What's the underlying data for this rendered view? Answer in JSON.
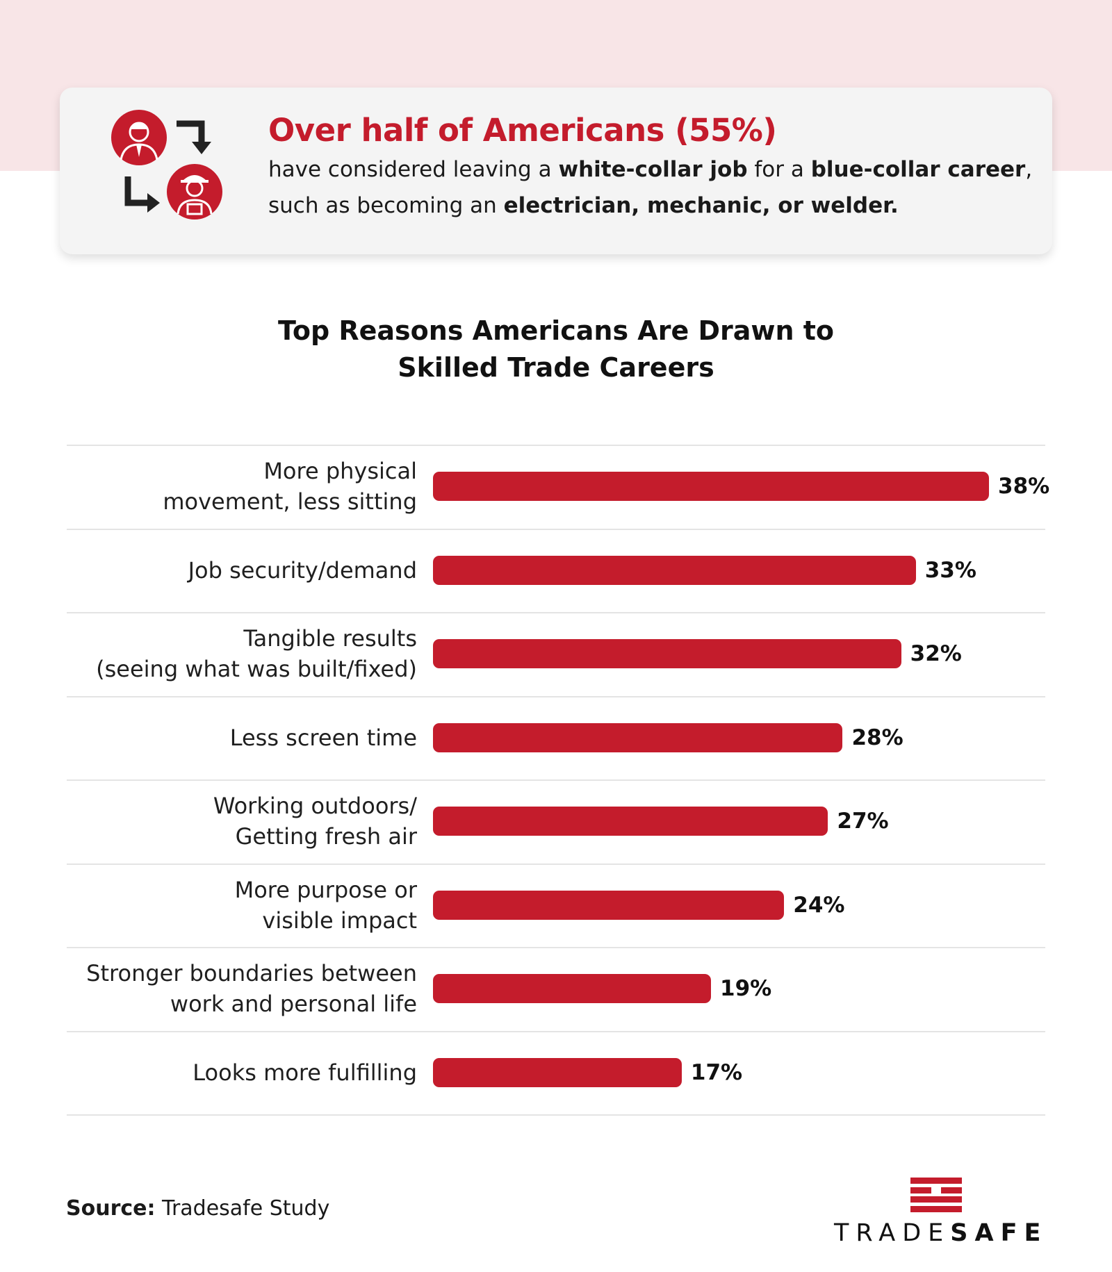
{
  "colors": {
    "accent": "#c41c2c",
    "band": "#f8e5e7",
    "card": "#f4f4f4"
  },
  "callout": {
    "icons": [
      "office-worker-icon",
      "arrow-right-down-icon",
      "arrow-down-right-icon",
      "tradesperson-icon"
    ],
    "headline": "Over half of Americans (55%)",
    "sub": {
      "t1": "have considered leaving a ",
      "b1": "white-collar job",
      "t2": " for a ",
      "b2": "blue-collar career",
      "t3": ", such as becoming an ",
      "b3": "electrician, mechanic, or welder."
    }
  },
  "chart_data": {
    "type": "bar",
    "orientation": "horizontal",
    "title_line1": "Top Reasons Americans Are Drawn to",
    "title_line2": "Skilled Trade Careers",
    "categories": [
      [
        "More physical",
        "movement, less sitting"
      ],
      [
        "Job security/demand"
      ],
      [
        "Tangible results",
        "(seeing what was built/fixed)"
      ],
      [
        "Less screen time"
      ],
      [
        "Working outdoors/",
        "Getting fresh air"
      ],
      [
        "More purpose or",
        "visible impact"
      ],
      [
        "Stronger boundaries between",
        "work and personal life"
      ],
      [
        "Looks more fulfilling"
      ]
    ],
    "values": [
      38,
      33,
      32,
      28,
      27,
      24,
      19,
      17
    ],
    "value_labels": [
      "38%",
      "33%",
      "32%",
      "28%",
      "27%",
      "24%",
      "19%",
      "17%"
    ],
    "unit": "%",
    "xlim": [
      0,
      38
    ],
    "grid": false,
    "legend": "none"
  },
  "footer": {
    "source_label": "Source:",
    "source_text": " Tradesafe Study",
    "logo_light": "TRADE",
    "logo_bold": "SAFE"
  }
}
